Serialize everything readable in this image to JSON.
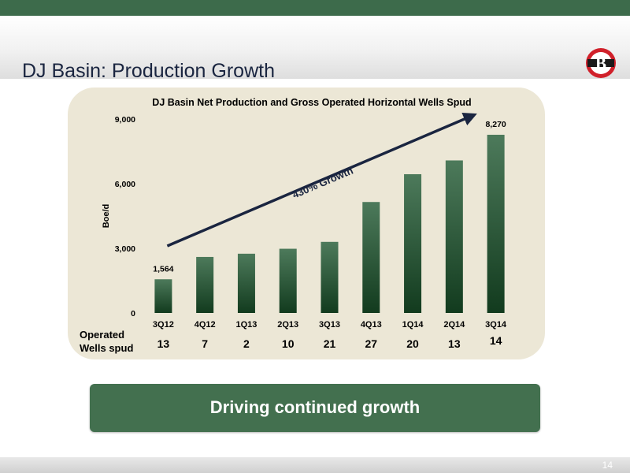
{
  "slide": {
    "title": "DJ Basin: Production Growth",
    "page_number": "14",
    "logo_letter": "B",
    "banner_text": "Driving continued growth",
    "colors": {
      "accent_green": "#3d6b4b",
      "panel": "#ece7d6",
      "logo_red": "#d0202a",
      "bar_top": "#4d7a5b",
      "bar_bottom": "#123b1e"
    }
  },
  "wells_spud": {
    "label_line1": "Operated",
    "label_line2": "Wells spud",
    "values": [
      "13",
      "7",
      "2",
      "10",
      "21",
      "27",
      "20",
      "13",
      "14"
    ]
  },
  "chart_data": {
    "type": "bar",
    "title": "DJ Basin Net Production and Gross Operated Horizontal Wells Spud",
    "ylabel": "Boe/d",
    "xlabel": "",
    "categories": [
      "3Q12",
      "4Q12",
      "1Q13",
      "2Q13",
      "3Q13",
      "4Q13",
      "1Q14",
      "2Q14",
      "3Q14"
    ],
    "values": [
      1564,
      2600,
      2750,
      2980,
      3300,
      5150,
      6440,
      7080,
      8270
    ],
    "data_labels": {
      "0": "1,564",
      "8": "8,270"
    },
    "ylim": [
      0,
      9000
    ],
    "yticks": [
      0,
      3000,
      6000,
      9000
    ],
    "ytick_labels": [
      "0",
      "3,000",
      "6,000",
      "9,000"
    ],
    "grid": false,
    "annotation": {
      "text": "430% Growth",
      "from_category": "3Q12",
      "from_value": 3000,
      "to_category": "3Q14",
      "to_value": 9200
    }
  }
}
